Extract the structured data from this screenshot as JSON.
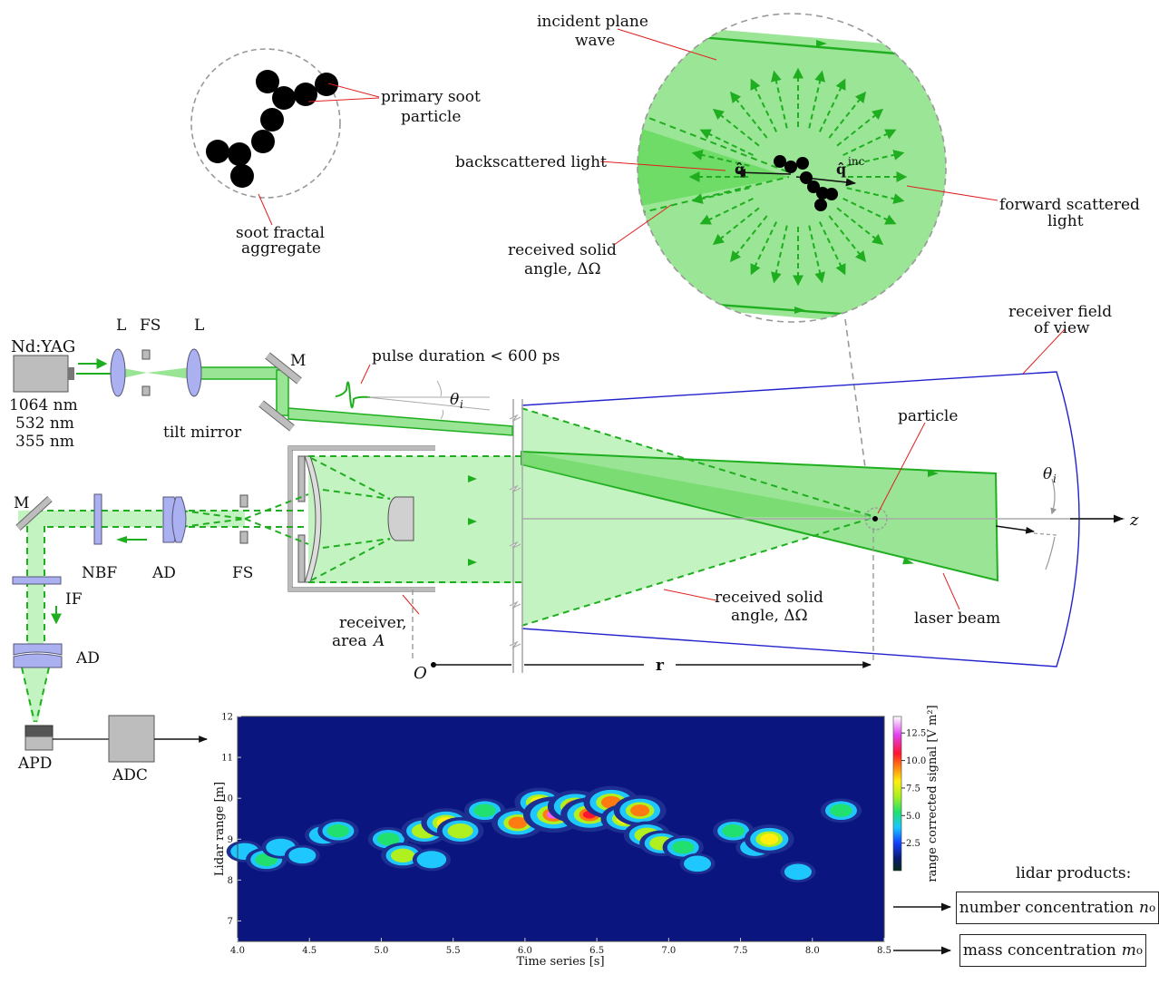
{
  "labels": {
    "incident_1": "incident plane",
    "incident_2": "wave",
    "primary_1": "primary soot",
    "primary_2": "particle",
    "backscattered": "backscattered light",
    "received_top_1": "received solid",
    "received_top_2": "angle, ΔΩ",
    "forward_1": "forward scattered",
    "forward_2": "light",
    "soot_1": "soot fractal",
    "soot_2": "aggregate",
    "q_hat": "q̂",
    "q_inc": "q̂",
    "q_inc_sup": "inc",
    "ndyag": "Nd:YAG",
    "wl_1064": "1064 nm",
    "wl_532": "532 nm",
    "wl_355": "355 nm",
    "L1": "L",
    "FS_top": "FS",
    "L2": "L",
    "M_top": "M",
    "pulse": "pulse duration < 600 ps",
    "theta_top": "θ",
    "theta_top_sub": "i",
    "tilt_mirror": "tilt mirror",
    "receiver_fov_1": "receiver field",
    "receiver_fov_2": "of view",
    "particle": "particle",
    "theta_right": "θ",
    "theta_right_sub": "i",
    "z_axis": "z",
    "M_left": "M",
    "NBF": "NBF",
    "AD_mid": "AD",
    "FS_mid": "FS",
    "IF": "IF",
    "AD_low": "AD",
    "receiver_1": "receiver,",
    "receiver_2": "area",
    "receiver_area": "A",
    "received_mid_1": "received solid",
    "received_mid_2": "angle, ΔΩ",
    "laser_beam": "laser beam",
    "origin": "O",
    "r": "r",
    "APD": "APD",
    "ADC": "ADC",
    "lidar_products": "lidar products:",
    "number_conc": "number concentration",
    "number_conc_sym": "n",
    "number_conc_sub": "o",
    "mass_conc": "mass concentration",
    "mass_conc_sym": "m",
    "mass_conc_sub": "o"
  },
  "colors": {
    "beam_light": "#c3f3c0",
    "beam_mid": "#9ae495",
    "beam_dark": "#6fd866",
    "green_line": "#1fae1f",
    "optic_blue": "#aab0f0",
    "fov_blue": "#2222cc"
  },
  "chart_data": {
    "type": "heatmap",
    "xlabel": "Time series [s]",
    "ylabel": "Lidar range [m]",
    "xlim": [
      4.0,
      8.5
    ],
    "ylim": [
      6.5,
      12
    ],
    "xticks": [
      "4.0",
      "4.5",
      "5.0",
      "5.5",
      "6.0",
      "6.5",
      "7.0",
      "7.5",
      "8.0",
      "8.5"
    ],
    "yticks": [
      "7",
      "8",
      "9",
      "10",
      "11",
      "12"
    ],
    "colorbar_label": "range corrected signal [V m²]",
    "colorbar_ticks": [
      "2.5",
      "5.0",
      "7.5",
      "10.0",
      "12.5"
    ],
    "colorbar_range": [
      0,
      14
    ],
    "blobs": [
      {
        "t": 4.05,
        "r": 8.7,
        "v": 4.5
      },
      {
        "t": 4.2,
        "r": 8.5,
        "v": 6
      },
      {
        "t": 4.3,
        "r": 8.8,
        "v": 5
      },
      {
        "t": 4.45,
        "r": 8.6,
        "v": 4
      },
      {
        "t": 4.6,
        "r": 9.1,
        "v": 5
      },
      {
        "t": 4.7,
        "r": 9.2,
        "v": 6
      },
      {
        "t": 5.05,
        "r": 9.0,
        "v": 6
      },
      {
        "t": 5.15,
        "r": 8.6,
        "v": 7
      },
      {
        "t": 5.3,
        "r": 9.2,
        "v": 8
      },
      {
        "t": 5.35,
        "r": 8.5,
        "v": 5
      },
      {
        "t": 5.45,
        "r": 9.4,
        "v": 9
      },
      {
        "t": 5.55,
        "r": 9.2,
        "v": 8
      },
      {
        "t": 5.72,
        "r": 9.7,
        "v": 6
      },
      {
        "t": 5.95,
        "r": 9.4,
        "v": 10
      },
      {
        "t": 6.1,
        "r": 9.9,
        "v": 9
      },
      {
        "t": 6.2,
        "r": 9.6,
        "v": 13
      },
      {
        "t": 6.35,
        "r": 9.8,
        "v": 11
      },
      {
        "t": 6.45,
        "r": 9.6,
        "v": 12
      },
      {
        "t": 6.6,
        "r": 9.9,
        "v": 11
      },
      {
        "t": 6.7,
        "r": 9.5,
        "v": 9
      },
      {
        "t": 6.8,
        "r": 9.7,
        "v": 10
      },
      {
        "t": 6.85,
        "r": 9.1,
        "v": 8
      },
      {
        "t": 6.95,
        "r": 8.9,
        "v": 7
      },
      {
        "t": 7.1,
        "r": 8.8,
        "v": 6
      },
      {
        "t": 7.2,
        "r": 8.4,
        "v": 4
      },
      {
        "t": 7.45,
        "r": 9.2,
        "v": 6
      },
      {
        "t": 7.6,
        "r": 8.8,
        "v": 5
      },
      {
        "t": 7.7,
        "r": 9.0,
        "v": 9
      },
      {
        "t": 7.9,
        "r": 8.2,
        "v": 4
      },
      {
        "t": 8.2,
        "r": 9.7,
        "v": 6
      }
    ]
  }
}
